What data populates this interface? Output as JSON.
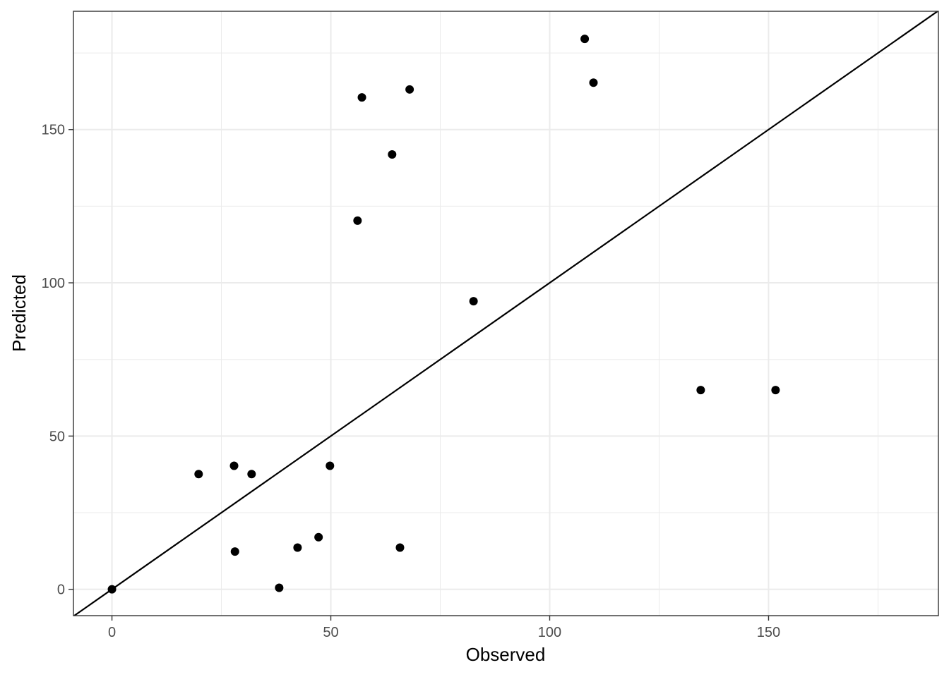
{
  "chart_data": {
    "type": "scatter",
    "title": "",
    "xlabel": "Observed",
    "ylabel": "Predicted",
    "xlim": [
      -8.8,
      188.8
    ],
    "ylim": [
      -8.6,
      188.6
    ],
    "x_ticks": [
      0,
      50,
      100,
      150
    ],
    "y_ticks": [
      0,
      50,
      100,
      150
    ],
    "x_tick_labels": [
      "0",
      "50",
      "100",
      "150"
    ],
    "y_tick_labels": [
      "0",
      "50",
      "100",
      "150"
    ],
    "grid": true,
    "reference_line": {
      "type": "identity",
      "intercept": 0,
      "slope": 1
    },
    "points": [
      {
        "x": 0,
        "y": 0
      },
      {
        "x": 19.8,
        "y": 37.6
      },
      {
        "x": 27.9,
        "y": 40.3
      },
      {
        "x": 28.1,
        "y": 12.3
      },
      {
        "x": 31.9,
        "y": 37.6
      },
      {
        "x": 38.2,
        "y": 0.5
      },
      {
        "x": 42.4,
        "y": 13.6
      },
      {
        "x": 47.2,
        "y": 17.0
      },
      {
        "x": 49.8,
        "y": 40.3
      },
      {
        "x": 56.1,
        "y": 120.3
      },
      {
        "x": 57.1,
        "y": 160.5
      },
      {
        "x": 64.0,
        "y": 141.9
      },
      {
        "x": 65.8,
        "y": 13.6
      },
      {
        "x": 68.0,
        "y": 163.1
      },
      {
        "x": 82.6,
        "y": 94.0
      },
      {
        "x": 108.0,
        "y": 179.6
      },
      {
        "x": 110.0,
        "y": 165.3
      },
      {
        "x": 134.5,
        "y": 65.0
      },
      {
        "x": 151.6,
        "y": 65.0
      }
    ],
    "colors": {
      "points": "#000000",
      "line": "#000000",
      "grid": "#ebebeb",
      "panel_border": "#333333"
    }
  }
}
